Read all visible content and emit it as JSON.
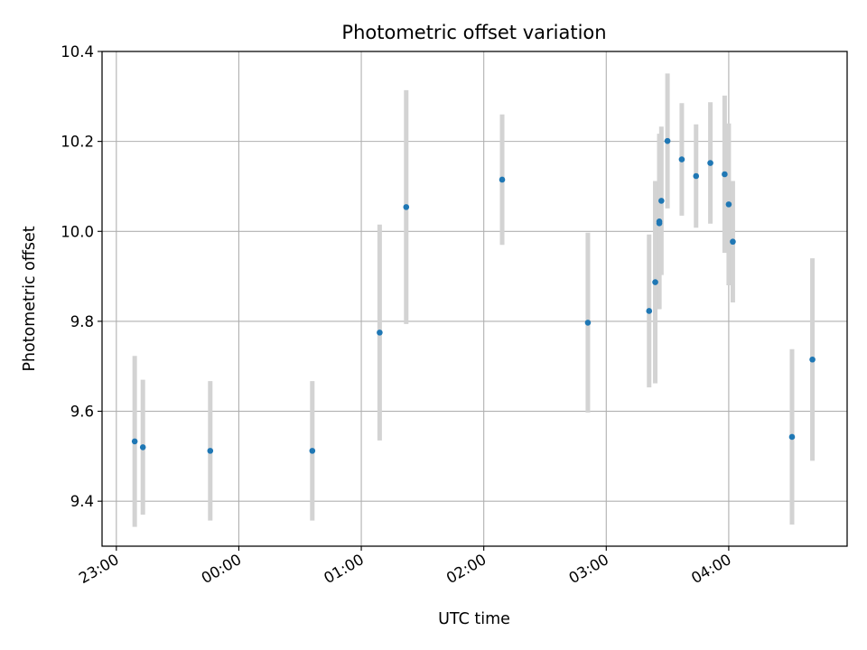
{
  "chart_data": {
    "type": "scatter",
    "title": "Photometric offset variation",
    "xlabel": "UTC time",
    "ylabel": "Photometric offset",
    "x_is_time": true,
    "x_reference_date": "reference day 23:00 UTC start",
    "xlim": [
      "22:53",
      "04:58"
    ],
    "ylim": [
      9.3,
      10.4
    ],
    "grid": true,
    "x_ticks": [
      "23:00",
      "00:00",
      "01:00",
      "02:00",
      "03:00",
      "04:00"
    ],
    "y_ticks": [
      "9.4",
      "9.6",
      "9.8",
      "10.0",
      "10.2",
      "10.4"
    ],
    "marker_color": "#1f77b4",
    "errorbar_color": "#d3d3d3",
    "points": [
      {
        "x": "23:09",
        "y": 9.533,
        "err": 0.19
      },
      {
        "x": "23:13",
        "y": 9.52,
        "err": 0.15
      },
      {
        "x": "23:46",
        "y": 9.512,
        "err": 0.155
      },
      {
        "x": "00:36",
        "y": 9.512,
        "err": 0.155
      },
      {
        "x": "01:09",
        "y": 9.775,
        "err": 0.24
      },
      {
        "x": "01:22",
        "y": 10.054,
        "err": 0.26
      },
      {
        "x": "02:09",
        "y": 10.115,
        "err": 0.145
      },
      {
        "x": "02:51",
        "y": 9.797,
        "err": 0.2
      },
      {
        "x": "03:21",
        "y": 9.823,
        "err": 0.17
      },
      {
        "x": "03:24",
        "y": 9.887,
        "err": 0.225
      },
      {
        "x": "03:26",
        "y": 10.022,
        "err": 0.195
      },
      {
        "x": "03:26",
        "y": 10.018,
        "err": 0.19
      },
      {
        "x": "03:27",
        "y": 10.068,
        "err": 0.165
      },
      {
        "x": "03:30",
        "y": 10.201,
        "err": 0.15
      },
      {
        "x": "03:37",
        "y": 10.16,
        "err": 0.125
      },
      {
        "x": "03:44",
        "y": 10.123,
        "err": 0.115
      },
      {
        "x": "03:51",
        "y": 10.152,
        "err": 0.135
      },
      {
        "x": "03:58",
        "y": 10.127,
        "err": 0.175
      },
      {
        "x": "04:00",
        "y": 10.06,
        "err": 0.18
      },
      {
        "x": "04:02",
        "y": 9.977,
        "err": 0.135
      },
      {
        "x": "04:31",
        "y": 9.543,
        "err": 0.195
      },
      {
        "x": "04:41",
        "y": 9.715,
        "err": 0.225
      }
    ]
  }
}
